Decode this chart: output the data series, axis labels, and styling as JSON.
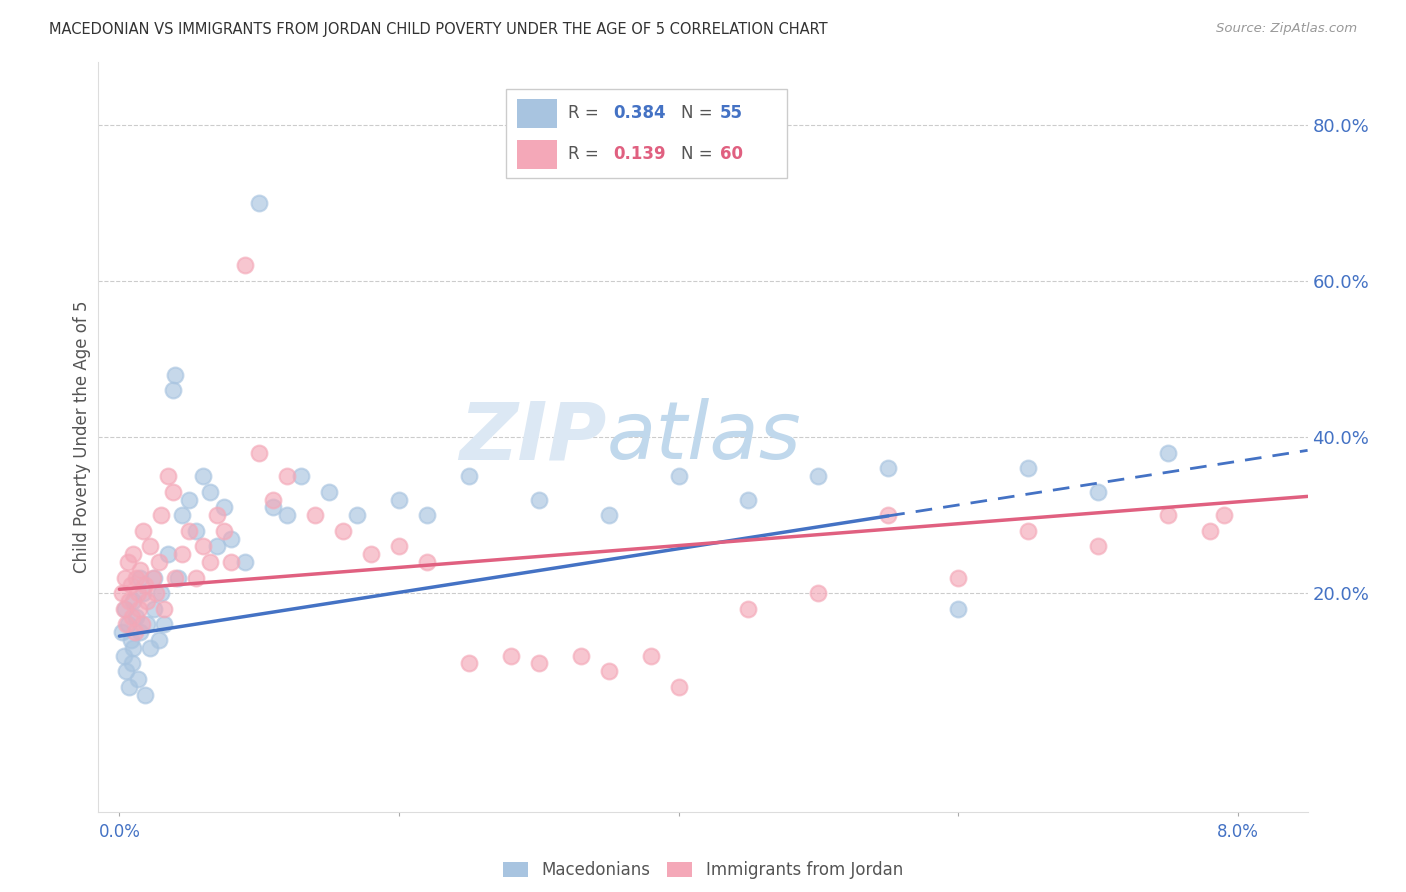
{
  "title": "MACEDONIAN VS IMMIGRANTS FROM JORDAN CHILD POVERTY UNDER THE AGE OF 5 CORRELATION CHART",
  "source": "Source: ZipAtlas.com",
  "ylabel": "Child Poverty Under the Age of 5",
  "blue_color": "#a8c4e0",
  "pink_color": "#f4a8b8",
  "blue_line_color": "#4472c4",
  "pink_line_color": "#e06080",
  "watermark_zip": "ZIP",
  "watermark_atlas": "atlas",
  "r1": "0.384",
  "n1": "55",
  "r2": "0.139",
  "n2": "60",
  "legend1_label": "Macedonians",
  "legend2_label": "Immigrants from Jordan",
  "macedonians_x": [
    0.02,
    0.03,
    0.04,
    0.05,
    0.06,
    0.07,
    0.08,
    0.09,
    0.1,
    0.1,
    0.12,
    0.13,
    0.15,
    0.15,
    0.17,
    0.18,
    0.2,
    0.22,
    0.25,
    0.25,
    0.28,
    0.3,
    0.32,
    0.35,
    0.38,
    0.4,
    0.42,
    0.45,
    0.5,
    0.55,
    0.6,
    0.65,
    0.7,
    0.75,
    0.8,
    0.9,
    1.0,
    1.1,
    1.2,
    1.3,
    1.5,
    1.7,
    2.0,
    2.2,
    2.5,
    3.0,
    3.5,
    4.0,
    4.5,
    5.0,
    5.5,
    6.0,
    6.5,
    7.0,
    7.5
  ],
  "macedonians_y": [
    15.0,
    12.0,
    18.0,
    10.0,
    16.0,
    8.0,
    14.0,
    11.0,
    19.0,
    13.0,
    17.0,
    9.0,
    15.0,
    22.0,
    20.0,
    7.0,
    16.0,
    13.0,
    22.0,
    18.0,
    14.0,
    20.0,
    16.0,
    25.0,
    46.0,
    48.0,
    22.0,
    30.0,
    32.0,
    28.0,
    35.0,
    33.0,
    26.0,
    31.0,
    27.0,
    24.0,
    70.0,
    31.0,
    30.0,
    35.0,
    33.0,
    30.0,
    32.0,
    30.0,
    35.0,
    32.0,
    30.0,
    35.0,
    32.0,
    35.0,
    36.0,
    18.0,
    36.0,
    33.0,
    38.0
  ],
  "jordan_x": [
    0.02,
    0.03,
    0.04,
    0.05,
    0.06,
    0.07,
    0.08,
    0.09,
    0.1,
    0.11,
    0.12,
    0.13,
    0.14,
    0.15,
    0.16,
    0.17,
    0.18,
    0.2,
    0.22,
    0.24,
    0.26,
    0.28,
    0.3,
    0.32,
    0.35,
    0.38,
    0.4,
    0.45,
    0.5,
    0.55,
    0.6,
    0.65,
    0.7,
    0.75,
    0.8,
    0.9,
    1.0,
    1.1,
    1.2,
    1.4,
    1.6,
    1.8,
    2.0,
    2.2,
    2.5,
    2.8,
    3.0,
    3.3,
    3.5,
    3.8,
    4.0,
    4.5,
    5.0,
    5.5,
    6.0,
    6.5,
    7.0,
    7.5,
    7.8,
    7.9
  ],
  "jordan_y": [
    20.0,
    18.0,
    22.0,
    16.0,
    24.0,
    19.0,
    21.0,
    17.0,
    25.0,
    15.0,
    22.0,
    20.0,
    18.0,
    23.0,
    16.0,
    28.0,
    21.0,
    19.0,
    26.0,
    22.0,
    20.0,
    24.0,
    30.0,
    18.0,
    35.0,
    33.0,
    22.0,
    25.0,
    28.0,
    22.0,
    26.0,
    24.0,
    30.0,
    28.0,
    24.0,
    62.0,
    38.0,
    32.0,
    35.0,
    30.0,
    28.0,
    25.0,
    26.0,
    24.0,
    11.0,
    12.0,
    11.0,
    12.0,
    10.0,
    12.0,
    8.0,
    18.0,
    20.0,
    30.0,
    22.0,
    28.0,
    26.0,
    30.0,
    28.0,
    30.0
  ],
  "xlim_min": -0.15,
  "xlim_max": 8.5,
  "ylim_min": -8.0,
  "ylim_max": 88.0,
  "blue_intercept": 14.5,
  "blue_slope": 2.8,
  "pink_intercept": 20.5,
  "pink_slope": 1.4
}
